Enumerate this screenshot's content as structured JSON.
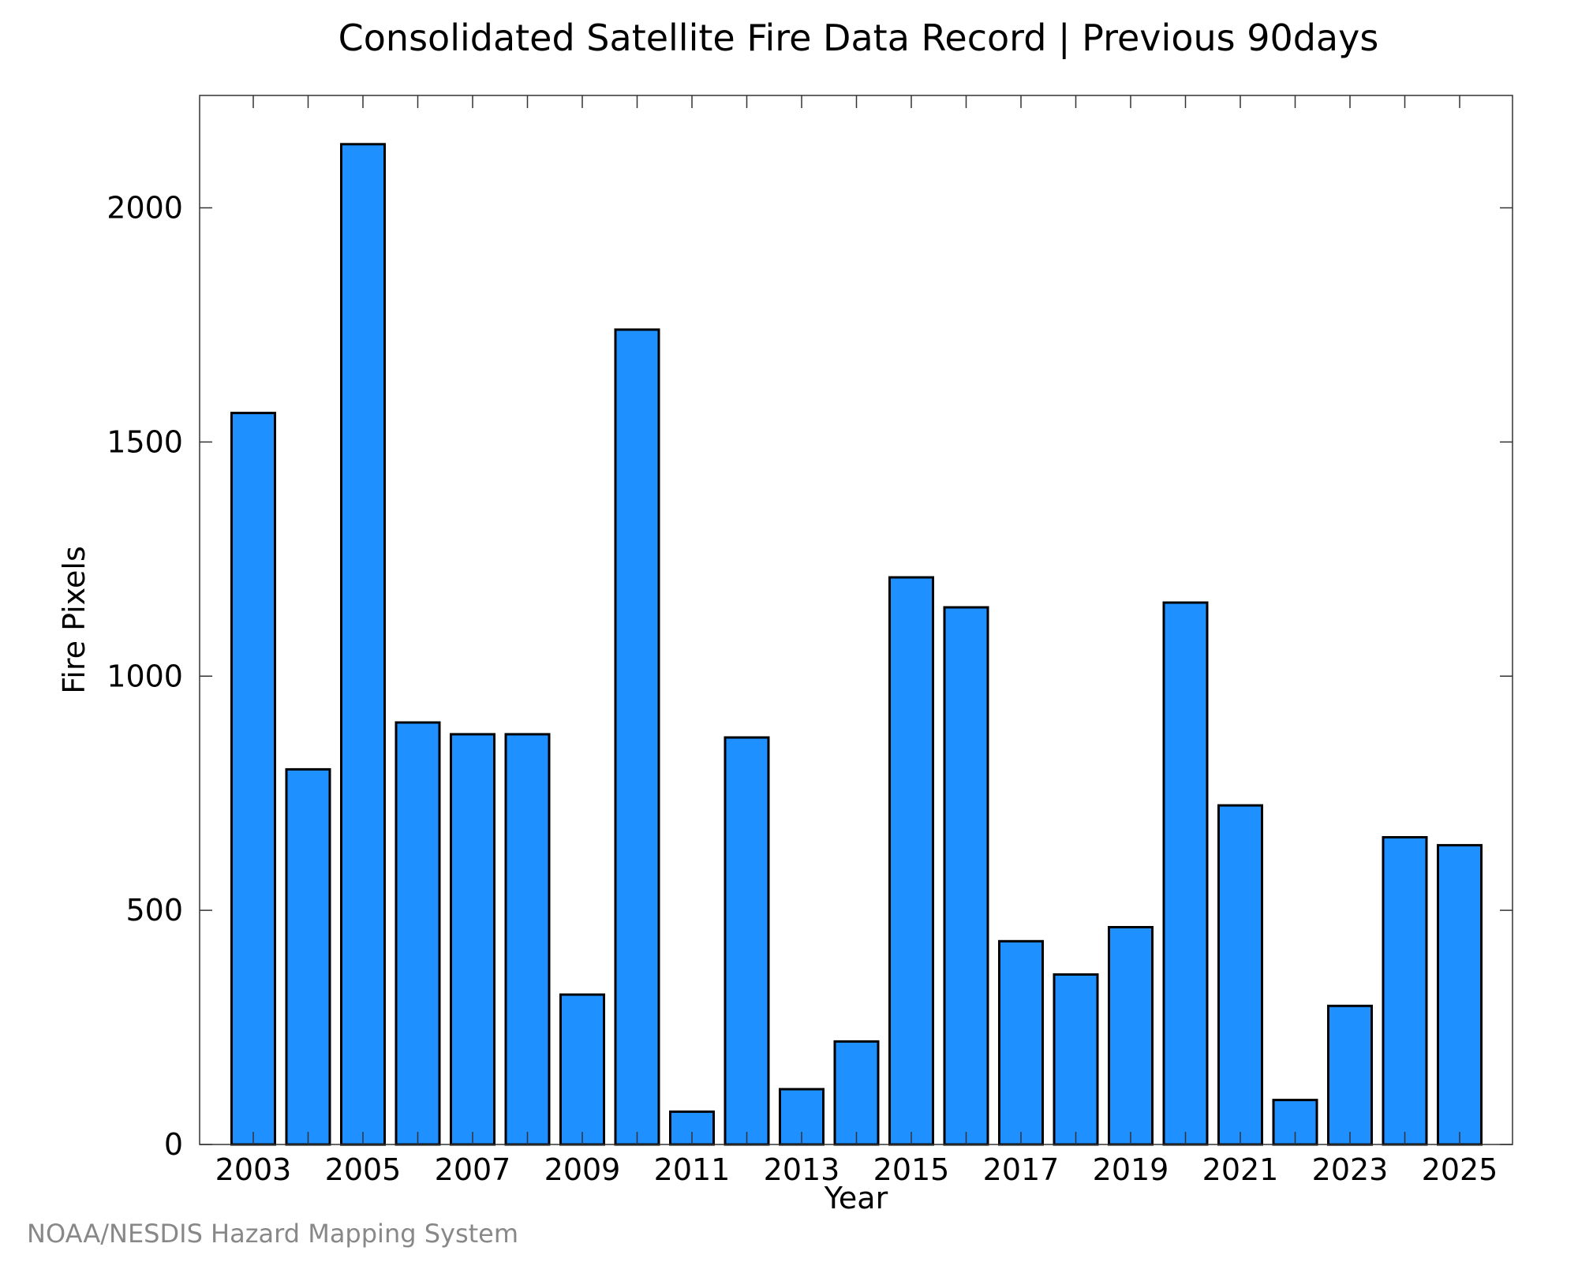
{
  "chart_data": {
    "type": "bar",
    "title": "Consolidated Satellite Fire Data Record | Previous 90days",
    "xlabel": "Year",
    "ylabel": "Fire Pixels",
    "categories": [
      "2003",
      "2004",
      "2005",
      "2006",
      "2007",
      "2008",
      "2009",
      "2010",
      "2011",
      "2012",
      "2013",
      "2014",
      "2015",
      "2016",
      "2017",
      "2018",
      "2019",
      "2020",
      "2021",
      "2022",
      "2023",
      "2024",
      "2025"
    ],
    "values": [
      1562,
      801,
      2136,
      901,
      876,
      876,
      320,
      1740,
      70,
      869,
      118,
      220,
      1211,
      1147,
      434,
      363,
      464,
      1157,
      724,
      95,
      296,
      656,
      639
    ],
    "x_tick_labels": [
      "2003",
      "2005",
      "2007",
      "2009",
      "2011",
      "2013",
      "2015",
      "2017",
      "2019",
      "2021",
      "2023",
      "2025"
    ],
    "y_ticks": [
      0,
      500,
      1000,
      1500,
      2000
    ],
    "ylim": [
      0,
      2240
    ],
    "bar_color": "#1e90ff",
    "bar_edge_color": "#000000",
    "grid": false,
    "legend": "none"
  },
  "credit": "NOAA/NESDIS Hazard Mapping System"
}
